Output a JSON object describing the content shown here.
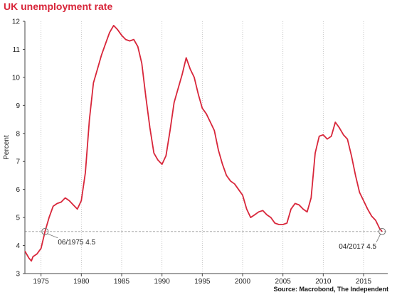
{
  "title": "UK unemployment rate",
  "source": "Source: Macrobond, The Independent",
  "colors": {
    "line": "#d8263a",
    "grid": "#bbbbbb",
    "axis": "#444444",
    "title": "#d8263a"
  },
  "chart_data": {
    "type": "line",
    "title": "UK unemployment rate",
    "xlabel": "",
    "ylabel": "Percent",
    "xlim": [
      1973,
      2018
    ],
    "ylim": [
      3,
      12
    ],
    "x_ticks": [
      "1975",
      "1980",
      "1985",
      "1990",
      "1995",
      "2000",
      "2005",
      "2010",
      "2015"
    ],
    "y_ticks": [
      "3",
      "4",
      "5",
      "6",
      "7",
      "8",
      "9",
      "10",
      "11",
      "12"
    ],
    "grid": {
      "x": true,
      "y": false,
      "style": "dotted"
    },
    "series": [
      {
        "values": [
          [
            1973.0,
            3.8
          ],
          [
            1973.5,
            3.55
          ],
          [
            1973.8,
            3.45
          ],
          [
            1974.0,
            3.6
          ],
          [
            1974.5,
            3.7
          ],
          [
            1975.0,
            3.9
          ],
          [
            1975.5,
            4.5
          ],
          [
            1976.0,
            5.0
          ],
          [
            1976.5,
            5.4
          ],
          [
            1977.0,
            5.5
          ],
          [
            1977.5,
            5.55
          ],
          [
            1978.0,
            5.7
          ],
          [
            1978.5,
            5.6
          ],
          [
            1979.0,
            5.45
          ],
          [
            1979.5,
            5.3
          ],
          [
            1980.0,
            5.6
          ],
          [
            1980.5,
            6.6
          ],
          [
            1981.0,
            8.5
          ],
          [
            1981.5,
            9.8
          ],
          [
            1982.0,
            10.3
          ],
          [
            1982.5,
            10.8
          ],
          [
            1983.0,
            11.2
          ],
          [
            1983.5,
            11.6
          ],
          [
            1984.0,
            11.85
          ],
          [
            1984.5,
            11.7
          ],
          [
            1985.0,
            11.5
          ],
          [
            1985.5,
            11.35
          ],
          [
            1986.0,
            11.3
          ],
          [
            1986.5,
            11.35
          ],
          [
            1987.0,
            11.1
          ],
          [
            1987.5,
            10.5
          ],
          [
            1988.0,
            9.3
          ],
          [
            1988.5,
            8.2
          ],
          [
            1989.0,
            7.3
          ],
          [
            1989.5,
            7.05
          ],
          [
            1990.0,
            6.9
          ],
          [
            1990.5,
            7.2
          ],
          [
            1991.0,
            8.1
          ],
          [
            1991.5,
            9.1
          ],
          [
            1992.0,
            9.6
          ],
          [
            1992.5,
            10.1
          ],
          [
            1993.0,
            10.7
          ],
          [
            1993.5,
            10.3
          ],
          [
            1994.0,
            10.0
          ],
          [
            1994.5,
            9.4
          ],
          [
            1995.0,
            8.9
          ],
          [
            1995.5,
            8.7
          ],
          [
            1996.0,
            8.4
          ],
          [
            1996.5,
            8.1
          ],
          [
            1997.0,
            7.4
          ],
          [
            1997.5,
            6.9
          ],
          [
            1998.0,
            6.5
          ],
          [
            1998.5,
            6.3
          ],
          [
            1999.0,
            6.2
          ],
          [
            1999.5,
            6.0
          ],
          [
            2000.0,
            5.8
          ],
          [
            2000.5,
            5.3
          ],
          [
            2001.0,
            5.0
          ],
          [
            2001.5,
            5.1
          ],
          [
            2002.0,
            5.2
          ],
          [
            2002.5,
            5.25
          ],
          [
            2003.0,
            5.1
          ],
          [
            2003.5,
            5.0
          ],
          [
            2004.0,
            4.8
          ],
          [
            2004.5,
            4.75
          ],
          [
            2005.0,
            4.75
          ],
          [
            2005.5,
            4.8
          ],
          [
            2006.0,
            5.3
          ],
          [
            2006.5,
            5.5
          ],
          [
            2007.0,
            5.45
          ],
          [
            2007.5,
            5.3
          ],
          [
            2008.0,
            5.2
          ],
          [
            2008.5,
            5.7
          ],
          [
            2009.0,
            7.3
          ],
          [
            2009.5,
            7.9
          ],
          [
            2010.0,
            7.95
          ],
          [
            2010.5,
            7.8
          ],
          [
            2011.0,
            7.9
          ],
          [
            2011.5,
            8.4
          ],
          [
            2012.0,
            8.2
          ],
          [
            2012.5,
            7.95
          ],
          [
            2013.0,
            7.8
          ],
          [
            2013.5,
            7.2
          ],
          [
            2014.0,
            6.5
          ],
          [
            2014.5,
            5.9
          ],
          [
            2015.0,
            5.6
          ],
          [
            2015.5,
            5.3
          ],
          [
            2016.0,
            5.05
          ],
          [
            2016.5,
            4.9
          ],
          [
            2017.0,
            4.6
          ],
          [
            2017.3,
            4.5
          ]
        ]
      }
    ],
    "reference_line": {
      "y": 4.5,
      "style": "dashed"
    },
    "annotations": [
      {
        "x": 1975.5,
        "y": 4.5,
        "text": "06/1975 4.5"
      },
      {
        "x": 2017.3,
        "y": 4.5,
        "text": "04/2017 4.5"
      }
    ]
  }
}
